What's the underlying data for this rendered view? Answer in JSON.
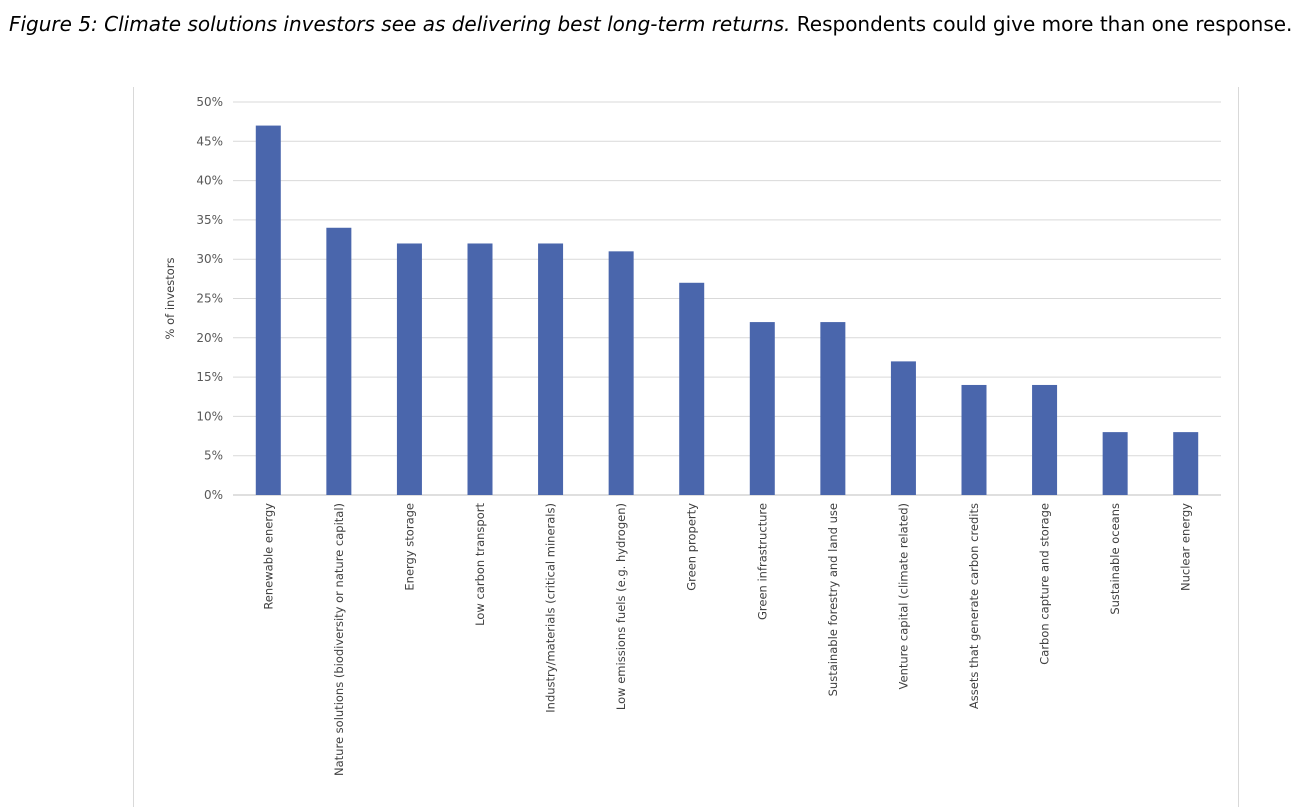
{
  "caption": {
    "italic": "Figure 5: Climate solutions investors see as delivering best long-term returns.",
    "regular": " Respondents could give more than one response."
  },
  "chart_data": {
    "type": "bar",
    "title": "",
    "xlabel": "",
    "ylabel": "% of investors",
    "ylim": [
      0,
      50
    ],
    "yticks": [
      "0%",
      "5%",
      "10%",
      "15%",
      "20%",
      "25%",
      "30%",
      "35%",
      "40%",
      "45%",
      "50%"
    ],
    "grid": true,
    "legend": "none",
    "bar_color": "#4a66ac",
    "categories": [
      "Renewable energy",
      "Nature solutions (biodiversity or nature capital)",
      "Energy storage",
      "Low carbon transport",
      "Industry/materials (critical minerals)",
      "Low emissions fuels (e.g. hydrogen)",
      "Green property",
      "Green infrastructure",
      "Sustainable forestry and land use",
      "Venture capital (climate related)",
      "Assets that generate carbon credits",
      "Carbon capture and storage",
      "Sustainable oceans",
      "Nuclear energy"
    ],
    "values": [
      47,
      34,
      32,
      32,
      32,
      31,
      27,
      22,
      22,
      17,
      14,
      14,
      8,
      8
    ]
  }
}
